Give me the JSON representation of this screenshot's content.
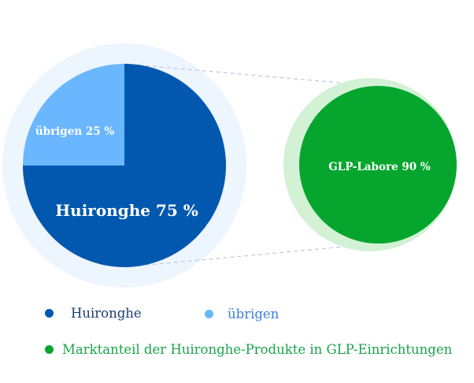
{
  "colors": {
    "primary": "#0258ae",
    "secondary": "#6bb7ff",
    "halo_left": "#edf5fe",
    "accent": "#06a62e",
    "halo_right": "#d3f1d5",
    "connector": "#c4cbe0"
  },
  "chart_data": {
    "type": "pie",
    "pie": {
      "slices": [
        {
          "label": "Huironghe 75 %",
          "value": 75,
          "color": "#0258ae"
        },
        {
          "label": "übrigen 25 %",
          "value": 25,
          "color": "#6bb7ff"
        }
      ]
    },
    "detail": {
      "label": "GLP-Labore 90 %",
      "value": 90,
      "color": "#06a62e"
    },
    "legend": [
      {
        "label": "Huironghe",
        "color": "#0258ae"
      },
      {
        "label": "übrigen",
        "color": "#6bb7ff"
      },
      {
        "label": "Marktanteil der Huironghe-Produkte in GLP-Einrichtungen",
        "color": "#06a62e"
      }
    ]
  }
}
